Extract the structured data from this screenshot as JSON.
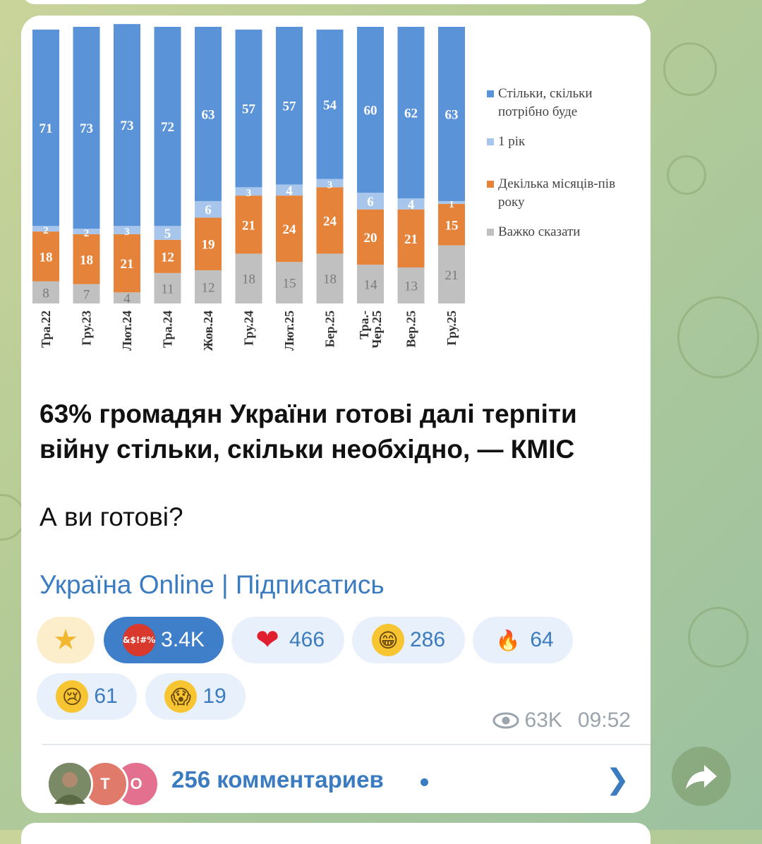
{
  "chart_data": {
    "type": "bar",
    "stacked": true,
    "orientation": "vertical",
    "ylim": [
      0,
      100
    ],
    "categories": [
      "Тра.22",
      "Гру.23",
      "Лют.24",
      "Тра.24",
      "Жов.24",
      "Гру.24",
      "Лют.25",
      "Бер.25",
      "Тра.-Чер.25",
      "Вер.25",
      "Гру.25"
    ],
    "category_lines": [
      [
        "Тра.22"
      ],
      [
        "Гру.23"
      ],
      [
        "Лют.24"
      ],
      [
        "Тра.24"
      ],
      [
        "Жов.24"
      ],
      [
        "Гру.24"
      ],
      [
        "Лют.25"
      ],
      [
        "Бер.25"
      ],
      [
        "Тра.-",
        "Чер.25"
      ],
      [
        "Вер.25"
      ],
      [
        "Гру.25"
      ]
    ],
    "series": [
      {
        "name": "Важко сказати",
        "color": "#c0c0c0",
        "values": [
          8,
          7,
          4,
          11,
          12,
          18,
          15,
          18,
          14,
          13,
          21
        ]
      },
      {
        "name": "Декілька місяців-пів року",
        "color": "#e6833a",
        "values": [
          18,
          18,
          21,
          12,
          19,
          21,
          24,
          24,
          20,
          21,
          15
        ]
      },
      {
        "name": "1 рік",
        "color": "#a8c6ec",
        "values": [
          2,
          2,
          3,
          5,
          6,
          3,
          4,
          3,
          6,
          4,
          1
        ]
      },
      {
        "name": "Стільки, скільки потрібно буде",
        "color": "#5b93d8",
        "values": [
          71,
          73,
          73,
          72,
          63,
          57,
          57,
          54,
          60,
          62,
          63
        ]
      }
    ],
    "legend": {
      "placement": "right",
      "items": [
        {
          "lines": [
            "Стільки, скільки",
            "потрібно буде"
          ],
          "color": "#5b93d8"
        },
        {
          "lines": [
            "1 рік"
          ],
          "color": "#a8c6ec"
        },
        {
          "lines": [
            "Декілька місяців-пів",
            "року"
          ],
          "color": "#e6833a"
        },
        {
          "lines": [
            "Важко сказати"
          ],
          "color": "#c0c0c0"
        }
      ]
    }
  },
  "post": {
    "title": "63% громадян України готові далі терпіти війну стільки, скільки необхідно, — КМІС",
    "question": "А ви готові?",
    "channel_link": "Україна Online",
    "separator": " | ",
    "subscribe_link": "Підписатись"
  },
  "reactions": [
    {
      "emoji": "★",
      "icon": "star-icon",
      "count": "",
      "active": false
    },
    {
      "emoji": "&$!#%",
      "icon": "angry-face-icon",
      "count": "3.4K",
      "active": true
    },
    {
      "emoji": "❤",
      "icon": "heart-icon",
      "count": "466",
      "active": false
    },
    {
      "emoji": "😁",
      "icon": "grinning-face-icon",
      "count": "286",
      "active": false
    },
    {
      "emoji": "🔥",
      "icon": "fire-icon",
      "count": "64",
      "active": false
    },
    {
      "emoji": "😢",
      "icon": "crying-face-icon",
      "count": "61",
      "active": false
    },
    {
      "emoji": "😱",
      "icon": "screaming-face-icon",
      "count": "19",
      "active": false
    }
  ],
  "meta": {
    "views": "63K",
    "time": "09:52"
  },
  "comments": {
    "text": "256 комментариев",
    "avatars": [
      {
        "initial": "",
        "color": "#6b7a5a"
      },
      {
        "initial": "Т",
        "color": "#e07a6a"
      },
      {
        "initial": "О",
        "color": "#e2708e"
      }
    ]
  }
}
